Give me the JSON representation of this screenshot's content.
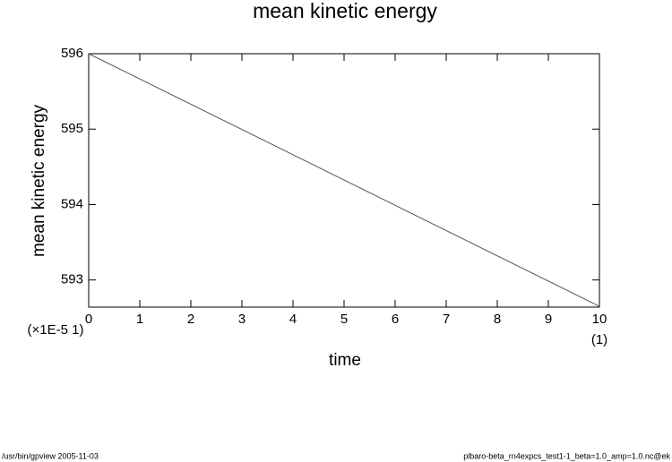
{
  "chart_data": {
    "type": "line",
    "title": "mean kinetic energy",
    "x_label": "time",
    "y_label": "mean kinetic energy",
    "y_unit_label": "(×1E-5 1)",
    "x_unit_label": "(1)",
    "x": [
      0,
      10
    ],
    "series": [
      {
        "name": "mean kinetic energy",
        "color": "#555555",
        "values": [
          596,
          592.65
        ]
      }
    ],
    "xlim": [
      0,
      10
    ],
    "xticks": [
      0,
      1,
      2,
      3,
      4,
      5,
      6,
      7,
      8,
      9,
      10
    ],
    "ylim": [
      592.64,
      596
    ],
    "yticks": [
      593,
      594,
      595,
      596
    ]
  },
  "footer": {
    "left": "/usr/bin/gpview   2005-11-03",
    "right": "plbaro-beta_rn4expcs_test1-1_beta=1.0_amp=1.0.nc@ek"
  }
}
